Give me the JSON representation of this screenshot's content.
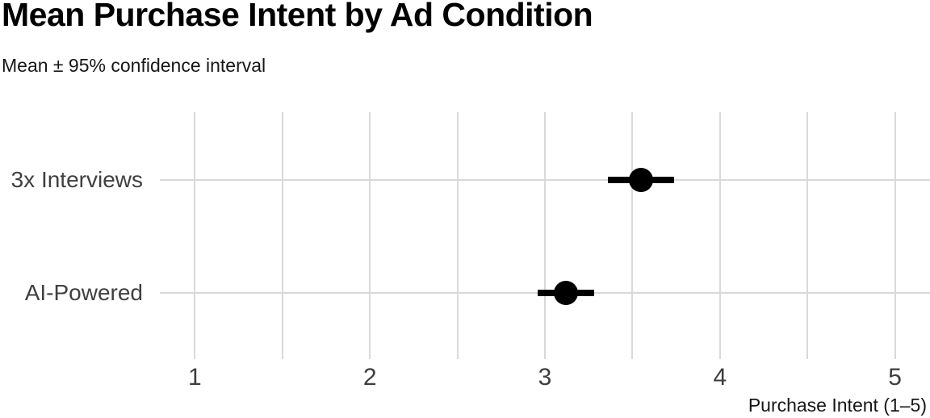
{
  "header": {
    "title": "Mean Purchase Intent by Ad Condition",
    "subtitle": "Mean ± 95% confidence interval"
  },
  "chart_data": {
    "type": "scatter",
    "subtype": "dot-plot-with-error-bars",
    "orientation": "horizontal",
    "title": "Mean Purchase Intent by Ad Condition",
    "subtitle": "Mean ± 95% confidence interval",
    "categories": [
      "3x Interviews",
      "AI-Powered"
    ],
    "series": [
      {
        "name": "Mean purchase intent",
        "values": [
          3.55,
          3.12
        ],
        "ci_low": [
          3.36,
          2.96
        ],
        "ci_high": [
          3.74,
          3.28
        ]
      }
    ],
    "xlabel": "Purchase Intent (1–5)",
    "ylabel": "",
    "xlim": [
      0.8,
      5.2
    ],
    "x_ticks": [
      1,
      2,
      3,
      4,
      5
    ],
    "x_gridlines": [
      1,
      1.5,
      2,
      2.5,
      3,
      3.5,
      4,
      4.5,
      5
    ],
    "grid": true,
    "legend_position": "none",
    "colors": {
      "point": "#000000",
      "error_bar": "#000000",
      "grid": "#d9d9d9",
      "title_text": "#000000",
      "subtitle_text": "#171717",
      "tick_text": "#3d3d3d",
      "category_text": "#404040",
      "background": "#ffffff"
    }
  }
}
